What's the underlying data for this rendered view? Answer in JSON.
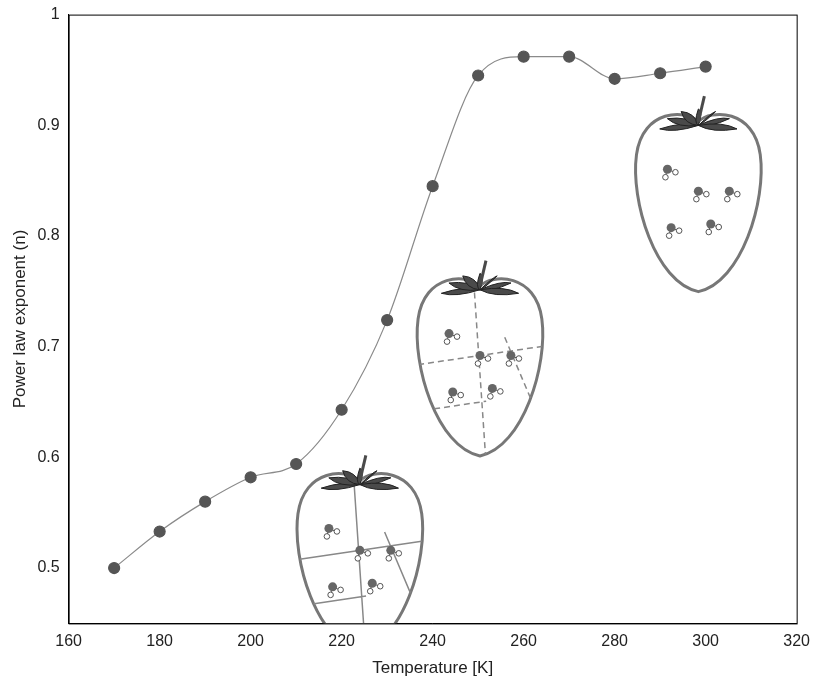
{
  "chart_data": {
    "type": "line",
    "x_label": "Temperature [K]",
    "y_label": "Power law exponent (n)",
    "x": [
      170,
      180,
      190,
      200,
      210,
      220,
      230,
      240,
      250,
      260,
      270,
      280,
      290,
      300
    ],
    "values": [
      0.5,
      0.533,
      0.56,
      0.582,
      0.594,
      0.643,
      0.724,
      0.845,
      0.945,
      0.962,
      0.962,
      0.942,
      0.947,
      0.953
    ],
    "color": "#555555",
    "marker": "circle",
    "line_style": "solid",
    "xlim": [
      160,
      320
    ],
    "xticks": [
      160,
      180,
      200,
      220,
      240,
      260,
      280,
      300,
      320
    ],
    "ylim": [
      0.45,
      1
    ],
    "yticks": [
      0.5,
      0.6,
      0.7,
      0.8,
      0.9,
      1
    ],
    "grid": false
  }
}
